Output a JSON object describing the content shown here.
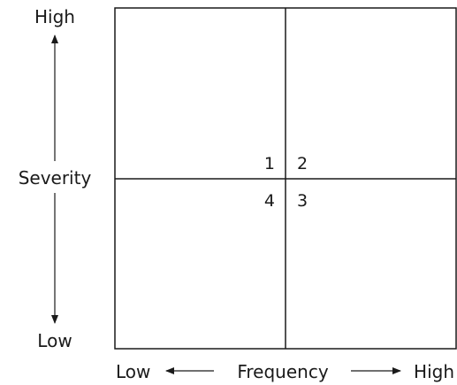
{
  "y_axis": {
    "title": "Severity",
    "high_label": "High",
    "low_label": "Low"
  },
  "x_axis": {
    "title": "Frequency",
    "low_label": "Low",
    "high_label": "High"
  },
  "quadrants": [
    {
      "label": "1"
    },
    {
      "label": "2"
    },
    {
      "label": "3"
    },
    {
      "label": "4"
    }
  ],
  "colors": {
    "ink": "#1a1a1a",
    "background": "#ffffff"
  }
}
